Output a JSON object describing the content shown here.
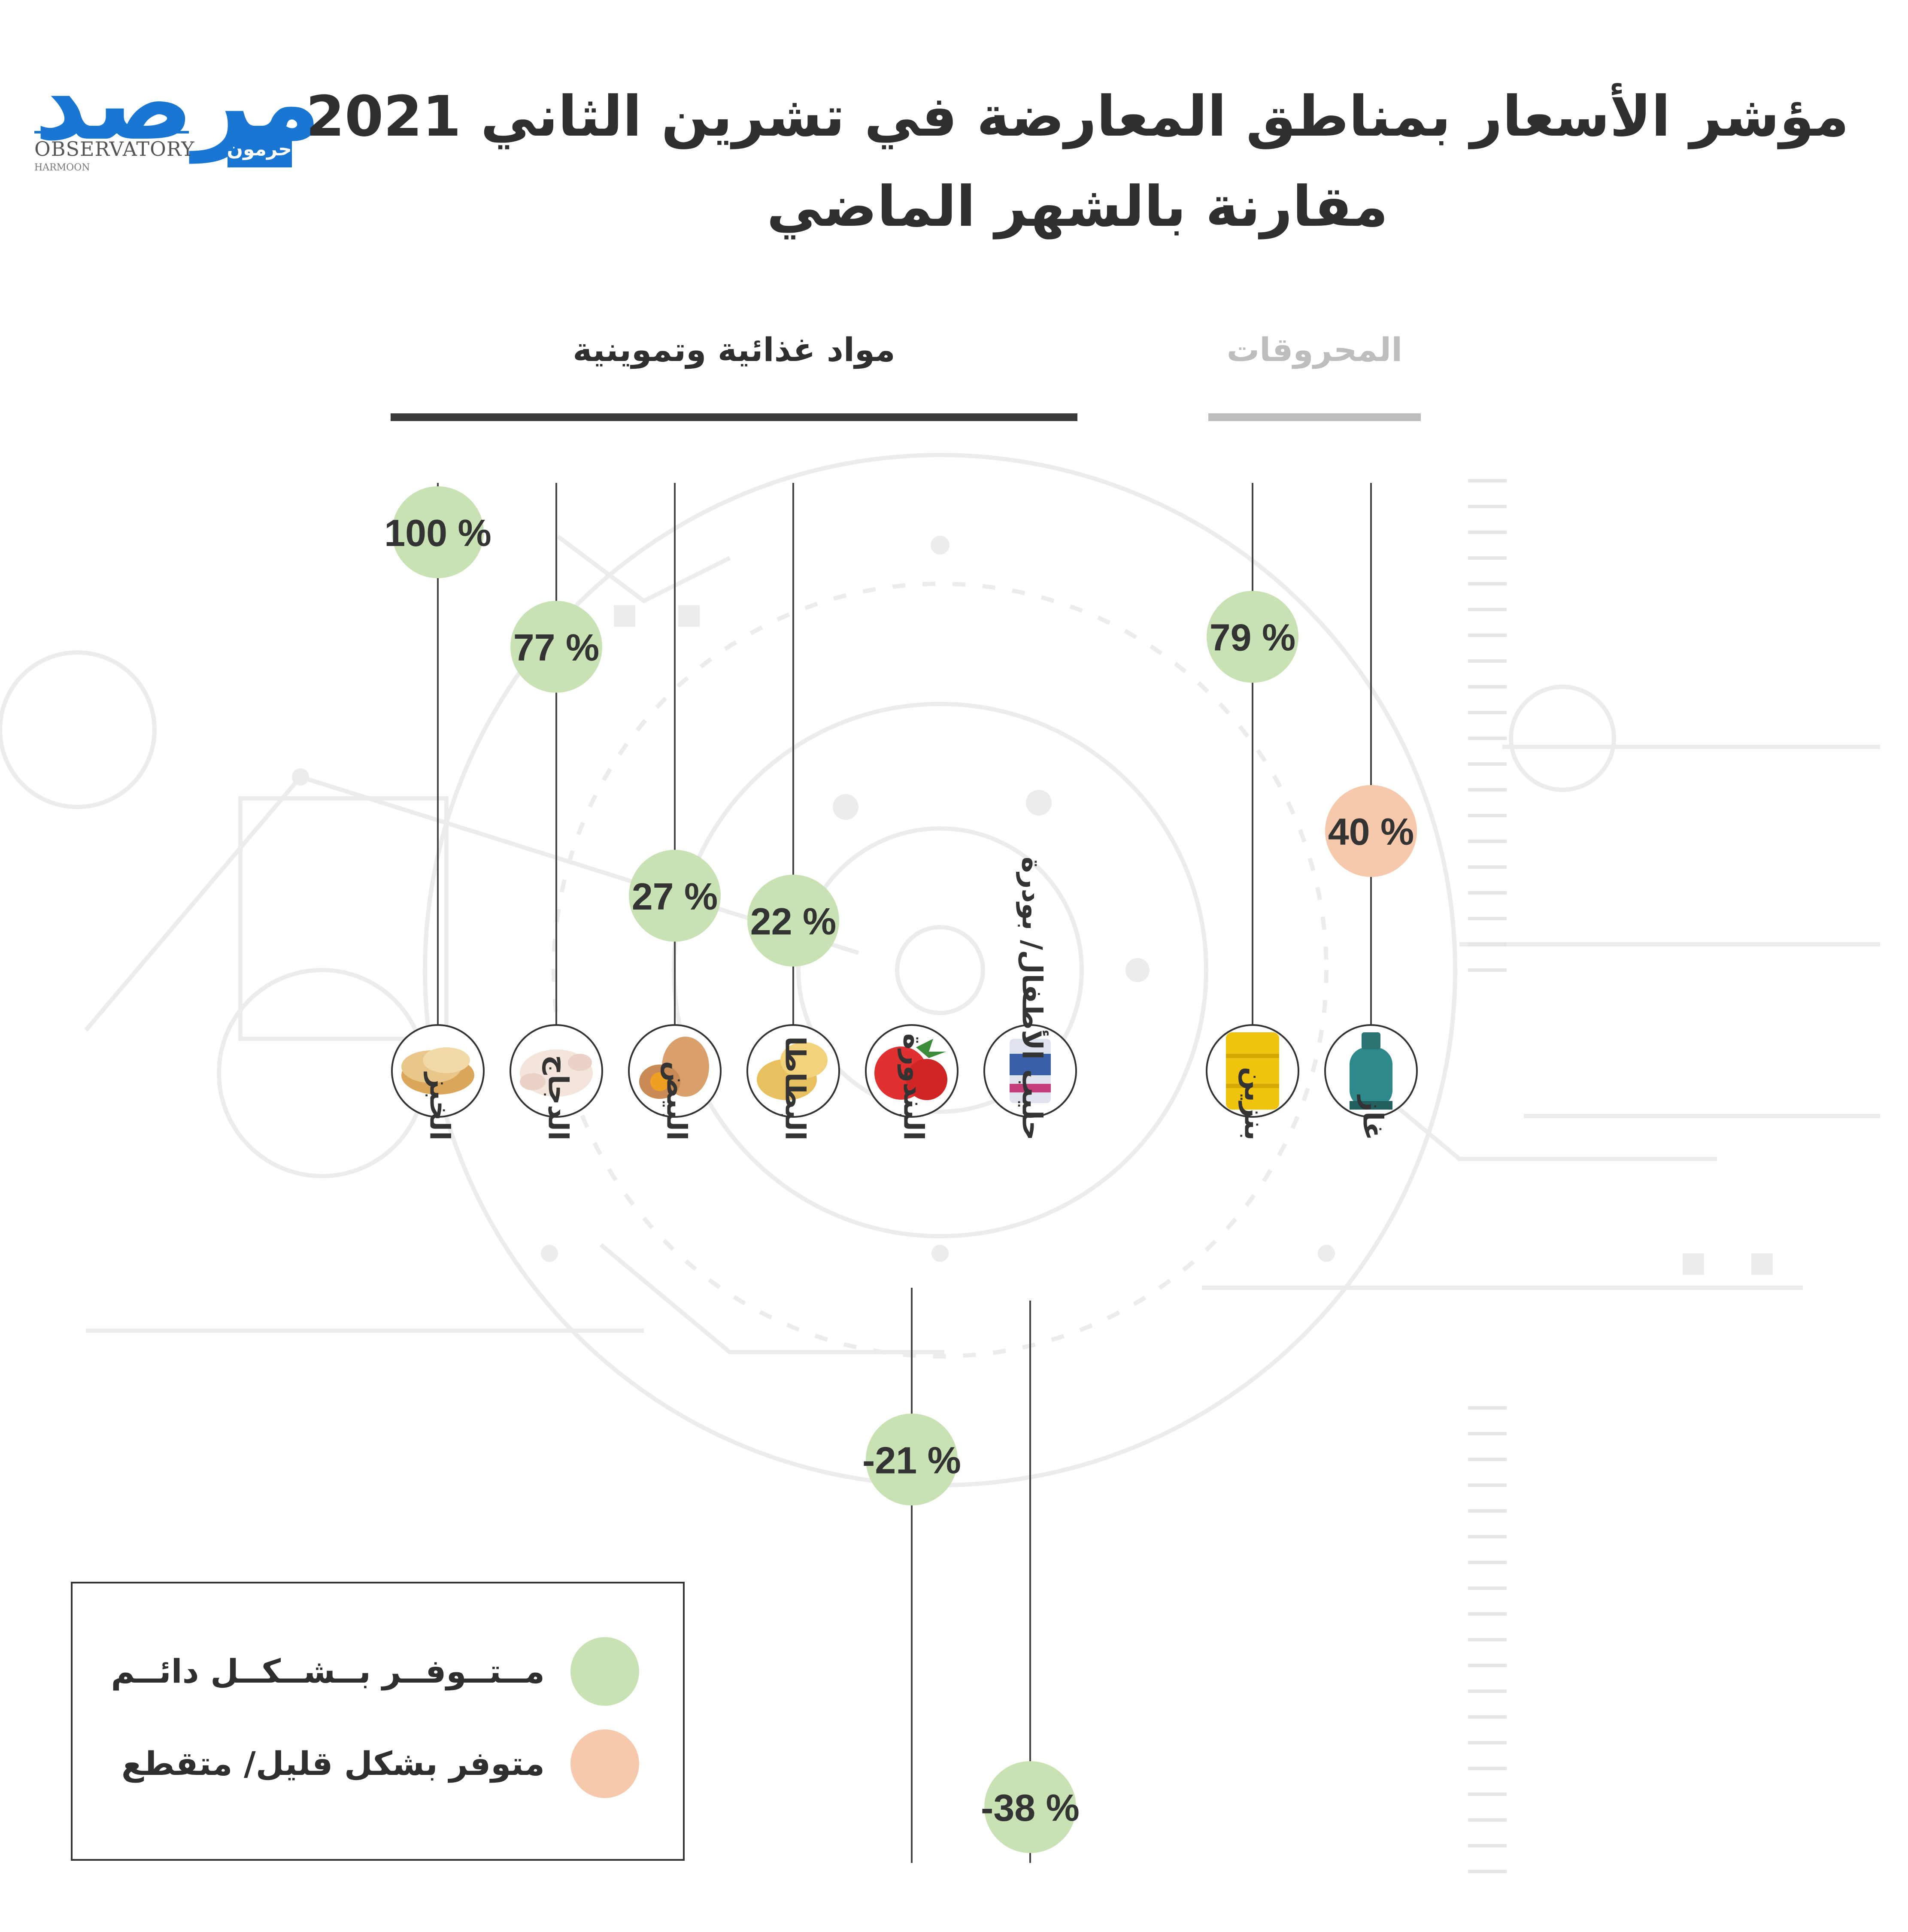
{
  "title": {
    "line1": "مؤشر الأسعار بمناطق المعارضة في تشرين الثاني 2021",
    "line2": "مقارنة بالشهر الماضي"
  },
  "logo": {
    "brand": "مرصد",
    "observatory": "OBSERVATORY",
    "sub": "حرمون",
    "harmoon": "HARMOON"
  },
  "groups": {
    "food": "مواد غذائية وتموينية",
    "fuel": "المحروقات"
  },
  "legend": {
    "available": "مــتــوفــر بــشــكــل دائــم",
    "scarce": "متوفر بشكل قليل/ متقطع"
  },
  "colors": {
    "available": "#c8e2b4",
    "scarce": "#f6c9ac",
    "food_bar": "#3a3a3a",
    "fuel_bar": "#bdbdbd",
    "label_text": "#333333"
  },
  "chart_data": {
    "type": "bar",
    "unit": "%",
    "categories": [
      "الخبز",
      "الدجاج",
      "البيض",
      "البطاطا",
      "البندورة",
      "حليب الأطفال/ بودرة",
      "بنزين",
      "غاز"
    ],
    "values": [
      100,
      77,
      27,
      22,
      -21,
      -38,
      79,
      40
    ],
    "value_labels": [
      "100 %",
      "77 %",
      "27 %",
      "22 %",
      "-21 %",
      "-38 %",
      "79 %",
      "40 %"
    ],
    "availability": [
      "available",
      "available",
      "available",
      "available",
      "available",
      "available",
      "available",
      "scarce"
    ],
    "group": [
      "food",
      "food",
      "food",
      "food",
      "food",
      "food",
      "fuel",
      "fuel"
    ],
    "icons": [
      "bread-icon",
      "chicken-icon",
      "eggs-icon",
      "potato-icon",
      "tomato-icon",
      "baby-milk-icon",
      "petrol-barrel-icon",
      "gas-cylinder-icon"
    ]
  }
}
